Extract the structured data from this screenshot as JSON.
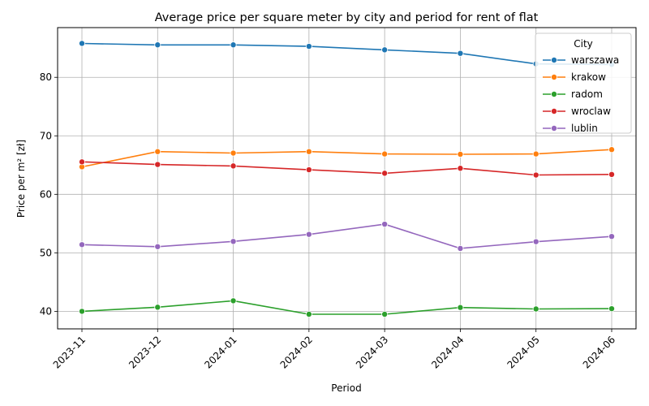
{
  "chart_data": {
    "type": "line",
    "title": "Average price per square meter by city and period for rent of flat",
    "xlabel": "Period",
    "ylabel": "Price per m² [zł]",
    "x": [
      "2023-11",
      "2023-12",
      "2024-01",
      "2024-02",
      "2024-03",
      "2024-04",
      "2024-05",
      "2024-06"
    ],
    "ylim": [
      37,
      88.5
    ],
    "yticks": [
      40,
      50,
      60,
      70,
      80
    ],
    "grid": true,
    "legend": {
      "title": "City",
      "placement": "top-right"
    },
    "series": [
      {
        "name": "warszawa",
        "color": "#1f77b4",
        "values": [
          85.8,
          85.55,
          85.55,
          85.3,
          84.7,
          84.1,
          82.3,
          82.2
        ]
      },
      {
        "name": "krakow",
        "color": "#ff7f0e",
        "values": [
          64.7,
          67.3,
          67.05,
          67.3,
          66.9,
          66.85,
          66.9,
          67.65
        ]
      },
      {
        "name": "radom",
        "color": "#2ca02c",
        "values": [
          40.0,
          40.7,
          41.8,
          39.5,
          39.5,
          40.65,
          40.4,
          40.45
        ]
      },
      {
        "name": "wroclaw",
        "color": "#d62728",
        "values": [
          65.55,
          65.1,
          64.85,
          64.2,
          63.6,
          64.45,
          63.3,
          63.4
        ]
      },
      {
        "name": "lublin",
        "color": "#9467bd",
        "values": [
          51.4,
          51.05,
          51.95,
          53.15,
          54.9,
          50.75,
          51.9,
          52.8
        ]
      }
    ]
  }
}
